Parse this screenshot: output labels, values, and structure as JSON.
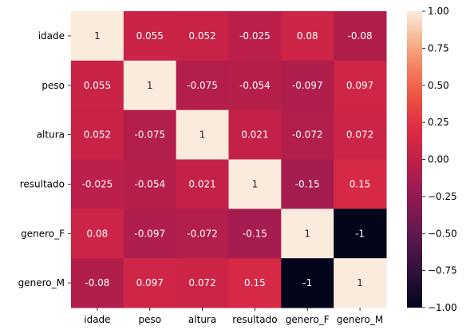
{
  "chart_data": {
    "type": "heatmap",
    "title": "",
    "xlabel": "",
    "ylabel": "",
    "x_categories": [
      "idade",
      "peso",
      "altura",
      "resultado",
      "genero_F",
      "genero_M"
    ],
    "y_categories": [
      "idade",
      "peso",
      "altura",
      "resultado",
      "genero_F",
      "genero_M"
    ],
    "values": [
      [
        1,
        0.055,
        0.052,
        -0.025,
        0.08,
        -0.08
      ],
      [
        0.055,
        1,
        -0.075,
        -0.054,
        -0.097,
        0.097
      ],
      [
        0.052,
        -0.075,
        1,
        0.021,
        -0.072,
        0.072
      ],
      [
        -0.025,
        -0.054,
        0.021,
        1,
        -0.15,
        0.15
      ],
      [
        0.08,
        -0.097,
        -0.072,
        -0.15,
        1,
        -1
      ],
      [
        -0.08,
        0.097,
        0.072,
        0.15,
        -1,
        1
      ]
    ],
    "cell_labels": [
      [
        "1",
        "0.055",
        "0.052",
        "-0.025",
        "0.08",
        "-0.08"
      ],
      [
        "0.055",
        "1",
        "-0.075",
        "-0.054",
        "-0.097",
        "0.097"
      ],
      [
        "0.052",
        "-0.075",
        "1",
        "0.021",
        "-0.072",
        "0.072"
      ],
      [
        "-0.025",
        "-0.054",
        "0.021",
        "1",
        "-0.15",
        "0.15"
      ],
      [
        "0.08",
        "-0.097",
        "-0.072",
        "-0.15",
        "1",
        "-1"
      ],
      [
        "-0.08",
        "0.097",
        "0.072",
        "0.15",
        "-1",
        "1"
      ]
    ],
    "colorbar": {
      "range": [
        -1.0,
        1.0
      ],
      "ticks": [
        1.0,
        0.75,
        0.5,
        0.25,
        0.0,
        -0.25,
        -0.5,
        -0.75,
        -1.0
      ],
      "tick_labels": [
        "1.00",
        "0.75",
        "0.50",
        "0.25",
        "0.00",
        "−0.25",
        "−0.50",
        "−0.75",
        "−1.00"
      ],
      "colormap": "rocket"
    }
  }
}
